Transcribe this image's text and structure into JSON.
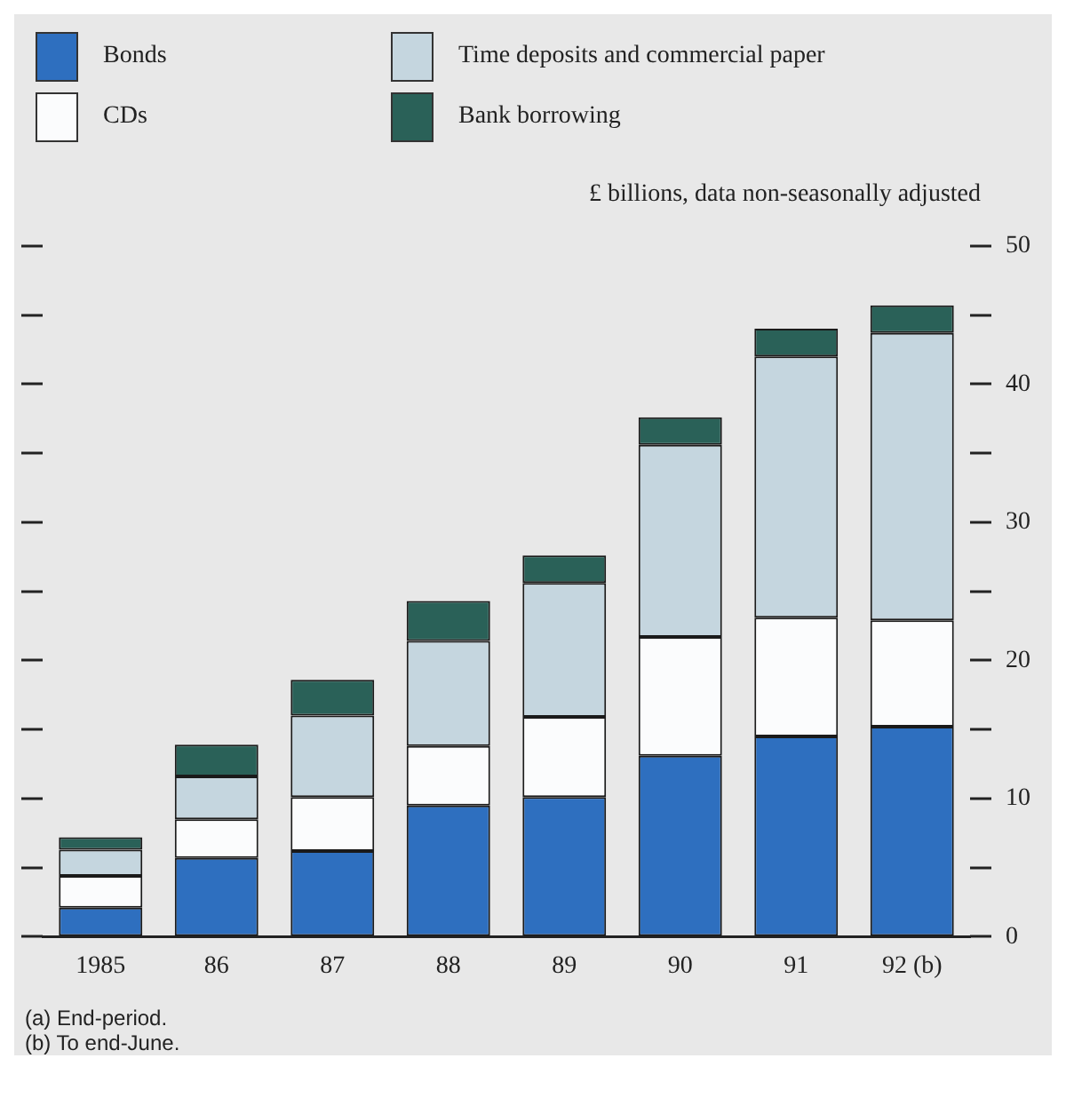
{
  "chart_data": {
    "type": "bar",
    "stacked": true,
    "ylabel": "£ billions, data non-seasonally adjusted",
    "categories": [
      "1985",
      "86",
      "87",
      "88",
      "89",
      "90",
      "91",
      "92 (b)"
    ],
    "series": [
      {
        "name": "Bonds",
        "color": "#2e6fbf",
        "values": [
          2.1,
          5.7,
          6.2,
          9.5,
          10.1,
          13.1,
          14.5,
          15.2
        ]
      },
      {
        "name": "CDs",
        "color": "#fbfcfd",
        "values": [
          2.3,
          2.8,
          3.9,
          4.3,
          5.8,
          8.6,
          8.6,
          7.7
        ]
      },
      {
        "name": "Time deposits and commercial paper",
        "color": "#c5d6df",
        "values": [
          1.9,
          3.1,
          5.9,
          7.6,
          9.7,
          13.9,
          18.9,
          20.8
        ]
      },
      {
        "name": "Bank borrowing",
        "color": "#2a6158",
        "values": [
          0.9,
          2.3,
          2.6,
          2.9,
          2.0,
          2.0,
          2.0,
          2.0
        ]
      }
    ],
    "ylim": [
      0,
      50
    ],
    "yticks": [
      0,
      {
        "value": 5,
        "label": null
      },
      10,
      {
        "value": 15,
        "label": null
      },
      20,
      {
        "value": 25,
        "label": null
      },
      30,
      {
        "value": 35,
        "label": null
      },
      40,
      {
        "value": 45,
        "label": null
      },
      50
    ],
    "grid": false,
    "legend": "top",
    "annotations": [
      "(a) End-period.",
      "(b) To end-June."
    ]
  }
}
